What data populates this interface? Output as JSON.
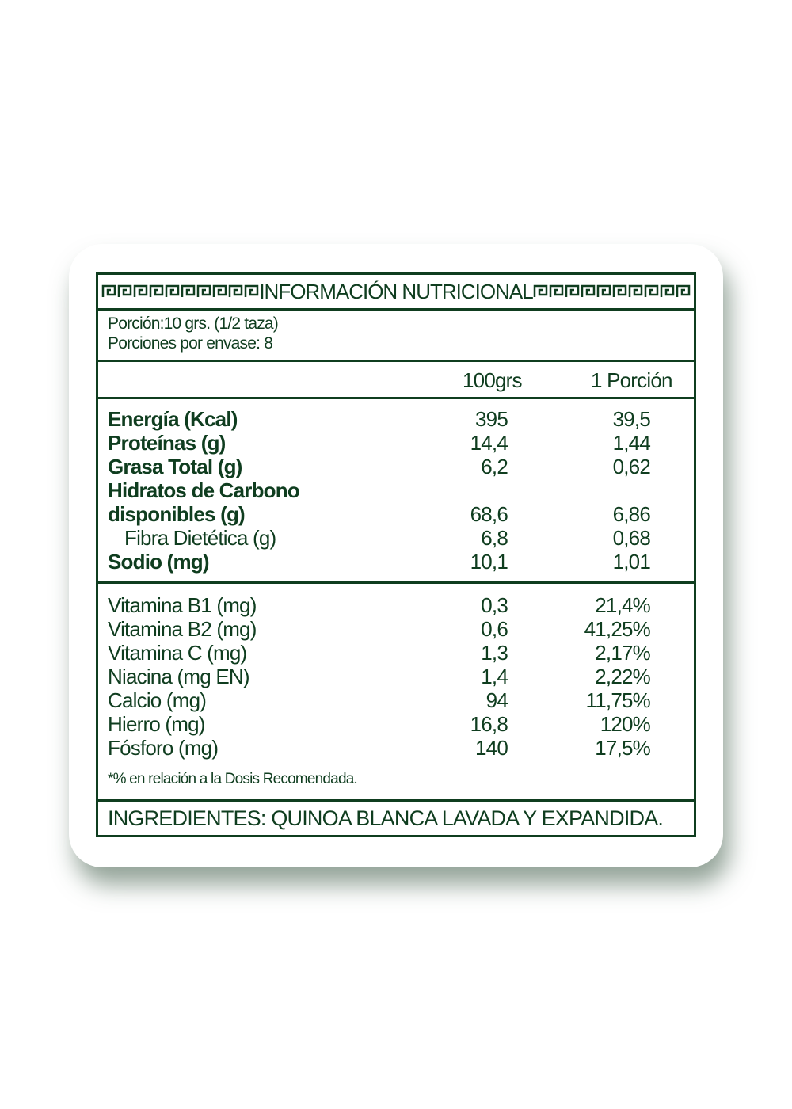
{
  "title": "INFORMACIÓN NUTRICIONAL",
  "serving": {
    "portion": "Porción:10 grs. (1/2 taza)",
    "per_pack": "Porciones por envase: 8"
  },
  "columns": {
    "c1": "100grs",
    "c2": "1 Porción"
  },
  "macros": [
    {
      "label": "Energía (Kcal)",
      "v1": "395",
      "v2": "39,5",
      "bold": true
    },
    {
      "label": "Proteínas (g)",
      "v1": "14,4",
      "v2": "1,44",
      "bold": true
    },
    {
      "label": "Grasa Total (g)",
      "v1": "6,2",
      "v2": "0,62",
      "bold": true
    },
    {
      "label": "Hidratos de Carbono",
      "v1": "",
      "v2": "",
      "bold": true
    },
    {
      "label": "disponibles (g)",
      "v1": "68,6",
      "v2": "6,86",
      "bold": true
    },
    {
      "label": "Fibra Dietética (g)",
      "v1": "6,8",
      "v2": "0,68",
      "bold": false
    },
    {
      "label": "Sodio (mg)",
      "v1": "10,1",
      "v2": "1,01",
      "bold": true
    }
  ],
  "vitamins": [
    {
      "label": "Vitamina B1 (mg)",
      "v1": "0,3",
      "v2": "21,4%"
    },
    {
      "label": "Vitamina B2 (mg)",
      "v1": "0,6",
      "v2": "41,25%"
    },
    {
      "label": "Vitamina C (mg)",
      "v1": "1,3",
      "v2": "2,17%"
    },
    {
      "label": "Niacina (mg EN)",
      "v1": "1,4",
      "v2": "2,22%"
    },
    {
      "label": "Calcio (mg)",
      "v1": "94",
      "v2": "11,75%"
    },
    {
      "label": "Hierro (mg)",
      "v1": "16,8",
      "v2": "120%"
    },
    {
      "label": "Fósforo (mg)",
      "v1": "140",
      "v2": "17,5%"
    }
  ],
  "footnote": "*% en relación a la Dosis Recomendada.",
  "ingredients": "INGREDIENTES: QUINOA BLANCA LAVADA Y EXPANDIDA.",
  "colors": {
    "ink": "#0f3d1f"
  }
}
